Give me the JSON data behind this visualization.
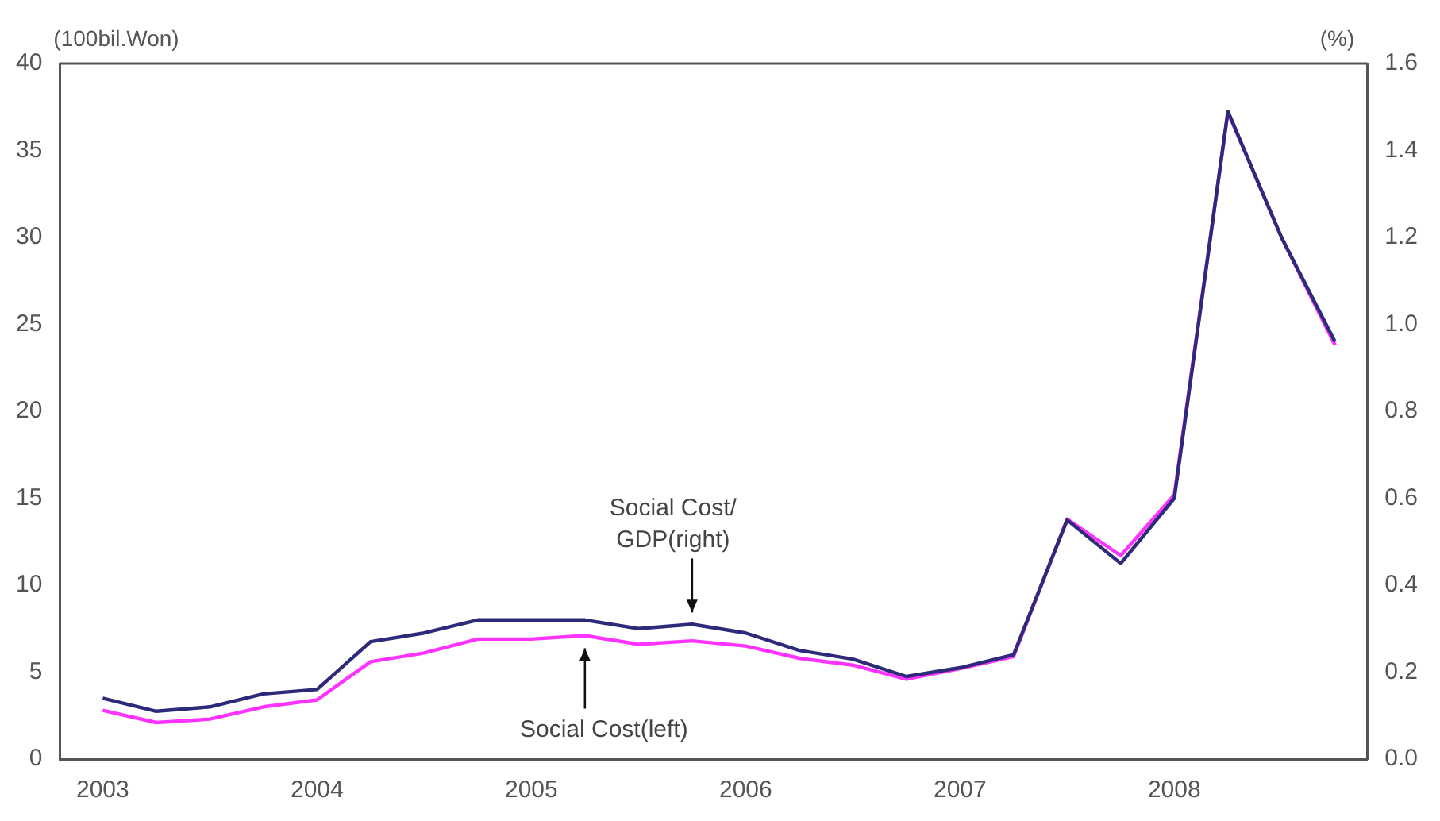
{
  "chart_data": {
    "type": "line",
    "ylabel": "(100bil.Won)",
    "y2label": "(%)",
    "x": [
      2003,
      2003.25,
      2003.5,
      2003.75,
      2004,
      2004.25,
      2004.5,
      2004.75,
      2005,
      2005.25,
      2005.5,
      2005.75,
      2006,
      2006.25,
      2006.5,
      2006.75,
      2007,
      2007.25,
      2007.5,
      2007.75,
      2008,
      2008.25,
      2008.5,
      2008.75
    ],
    "xlim": [
      2002.8,
      2008.9
    ],
    "xticks": [
      2003,
      2004,
      2005,
      2006,
      2007,
      2008
    ],
    "ylim": [
      0,
      40
    ],
    "yticks": [
      0,
      5,
      10,
      15,
      20,
      25,
      30,
      35,
      40
    ],
    "y2lim": [
      0,
      1.6
    ],
    "y2ticks": [
      {
        "value": 0,
        "label": "0.0"
      },
      0.2,
      0.4,
      0.6,
      0.8,
      {
        "value": 1,
        "label": "1.0"
      },
      1.2,
      1.4,
      1.6
    ],
    "series": [
      {
        "color": "#2e2a7a",
        "axis": "y2",
        "values": [
          0.14,
          0.11,
          0.12,
          0.15,
          0.16,
          0.27,
          0.29,
          0.32,
          0.32,
          0.32,
          0.3,
          0.31,
          0.29,
          0.25,
          0.23,
          0.19,
          0.21,
          0.24,
          0.55,
          0.45,
          0.6,
          1.49,
          1.2,
          0.96
        ]
      },
      {
        "color": "#ff33ff",
        "axis": "y",
        "values": [
          2.8,
          2.1,
          2.3,
          3.0,
          3.4,
          5.6,
          6.1,
          6.9,
          6.9,
          7.1,
          6.6,
          6.8,
          6.5,
          5.8,
          5.4,
          4.6,
          5.2,
          5.9,
          13.8,
          11.7,
          15.2,
          37.2,
          30.0,
          23.8
        ]
      }
    ],
    "annotations": [
      {
        "text": "Social Cost/\nGDP(right)",
        "x": 2005.75,
        "y": 7.7
      },
      {
        "text": "Social Cost(left)",
        "x": 2005.25,
        "y": 7.1
      }
    ],
    "grid": false,
    "legend": false,
    "marker": "none",
    "line_style": "solid"
  }
}
